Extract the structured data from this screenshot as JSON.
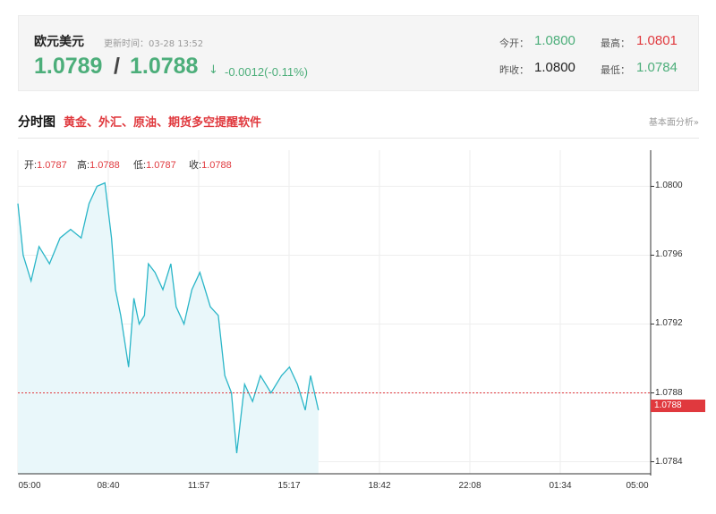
{
  "quote": {
    "pair_name": "欧元美元",
    "update_label": "更新时间：03-28 13:52",
    "bid": "1.0789",
    "slash": "/",
    "ask": "1.0788",
    "arrow": "↓",
    "change": "-0.0012(-0.11%)",
    "open_label": "今开：",
    "open_value": "1.0800",
    "high_label": "最高：",
    "high_value": "1.0801",
    "prev_close_label": "昨收：",
    "prev_close_value": "1.0800",
    "low_label": "最低：",
    "low_value": "1.0784"
  },
  "section": {
    "title": "分时图",
    "promo": "黄金、外汇、原油、期货多空提醒软件",
    "fund_link": "基本面分析»"
  },
  "ohlc": {
    "open_label": "开:",
    "open_value": "1.0787",
    "high_label": "高:",
    "high_value": "1.0788",
    "low_label": "低:",
    "low_value": "1.0787",
    "close_label": "收:",
    "close_value": "1.0788"
  },
  "colors": {
    "up": "#e0393e",
    "down": "#4cae7a",
    "line": "#2bb6c8",
    "fill": "#e9f7fa"
  },
  "chart_data": {
    "type": "area",
    "x_ticks": [
      "05:00",
      "08:40",
      "11:57",
      "15:17",
      "18:42",
      "22:08",
      "01:34",
      "05:00"
    ],
    "y_ticks": [
      "1.0800",
      "1.0796",
      "1.0792",
      "1.0788",
      "1.0784"
    ],
    "ylim": [
      1.07833,
      1.08021
    ],
    "current_price": "1.0788",
    "x_hours": [
      0,
      0.2,
      0.5,
      0.8,
      1.2,
      1.6,
      2.0,
      2.4,
      2.7,
      3.0,
      3.3,
      3.55,
      3.7,
      3.9,
      4.2,
      4.4,
      4.6,
      4.8,
      4.95,
      5.2,
      5.5,
      5.8,
      6.0,
      6.3,
      6.6,
      6.9,
      7.1,
      7.3,
      7.6,
      7.85,
      8.1,
      8.3,
      8.6,
      8.9,
      9.2,
      9.6,
      10.0,
      10.3,
      10.6,
      10.9,
      11.1,
      11.4
    ],
    "values": [
      1.0799,
      1.0796,
      1.07945,
      1.07965,
      1.07955,
      1.0797,
      1.07975,
      1.0797,
      1.0799,
      1.08,
      1.08002,
      1.0797,
      1.0794,
      1.07925,
      1.07895,
      1.07935,
      1.0792,
      1.07925,
      1.07955,
      1.0795,
      1.0794,
      1.07955,
      1.0793,
      1.0792,
      1.0794,
      1.0795,
      1.0794,
      1.0793,
      1.07925,
      1.0789,
      1.0788,
      1.07845,
      1.07885,
      1.07875,
      1.0789,
      1.0788,
      1.0789,
      1.07895,
      1.07885,
      1.0787,
      1.0789,
      1.0787
    ],
    "grid": true
  }
}
